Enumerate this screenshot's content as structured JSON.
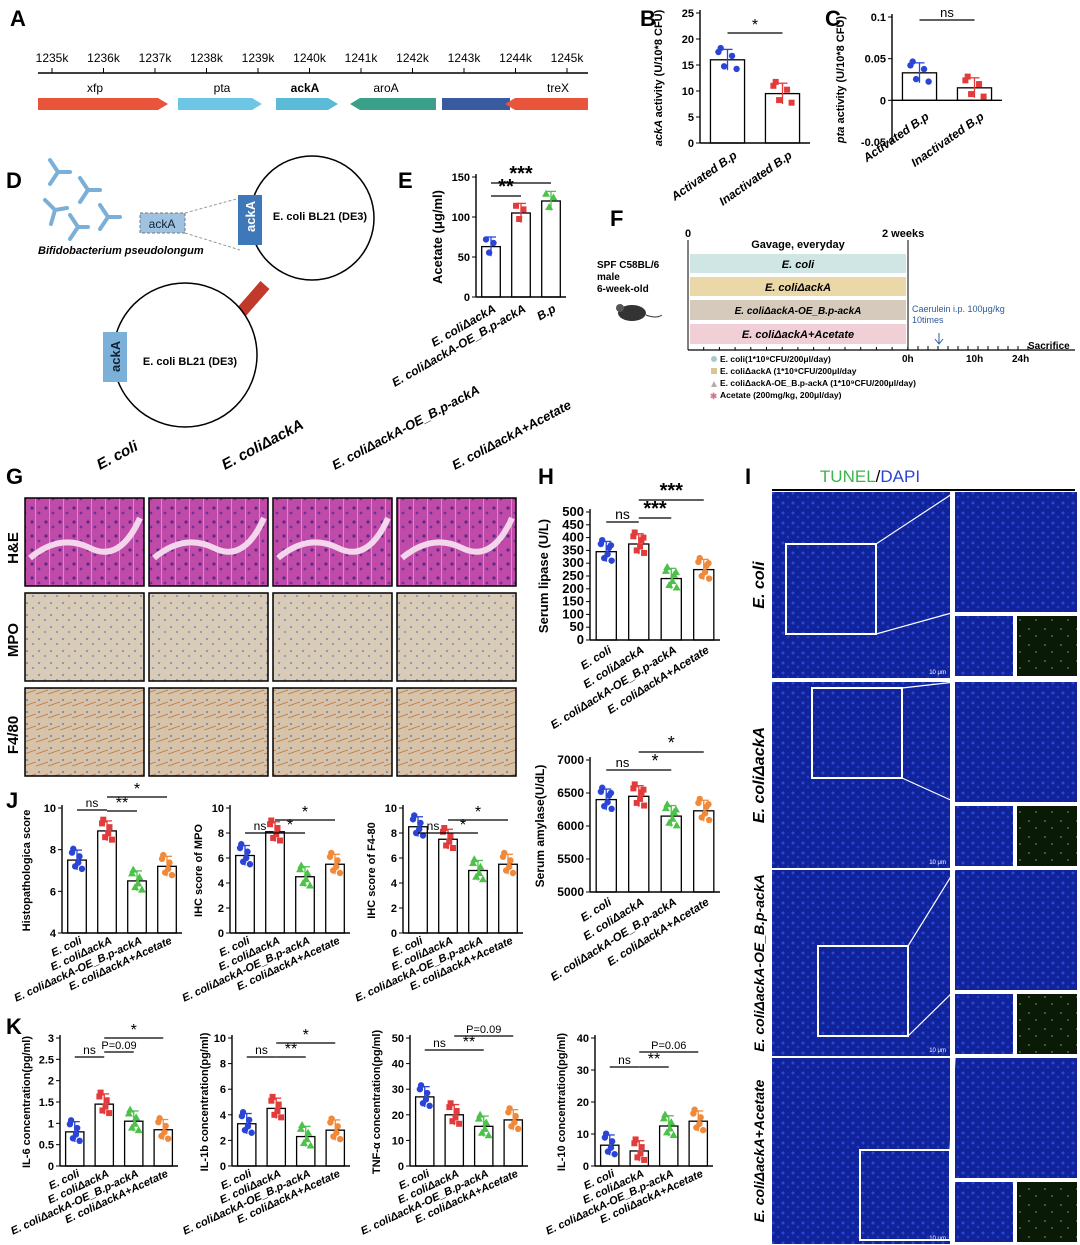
{
  "colors": {
    "blue": "#2a44d6",
    "red": "#e23b3b",
    "green": "#4cc24a",
    "orange": "#f08a3a",
    "xfp": "#e8553a",
    "pta": "#6ec6e6",
    "ackA": "#5bbad6",
    "aroA": "#3aa089",
    "nav": "#3a5aa0",
    "treX": "#e8553a"
  },
  "panelA": {
    "letter": "A",
    "ticks": [
      "1235k",
      "1236k",
      "1237k",
      "1238k",
      "1239k",
      "1240k",
      "1241k",
      "1242k",
      "1243k",
      "1244k",
      "1245k"
    ],
    "genes": [
      "xfp",
      "pta",
      "ackA",
      "aroA",
      "treX"
    ]
  },
  "panelB": {
    "letter": "B",
    "ylabel": "ackA activity (U/10*8 CFU)",
    "sig": "*",
    "cats": [
      "Activated B.p",
      "Inactivated B.p"
    ]
  },
  "panelC": {
    "letter": "C",
    "ylabel": "pta activity (U/10*8 CFU)",
    "sig": "ns",
    "cats": [
      "Activated B.p",
      "Inactivated B.p"
    ]
  },
  "panelD": {
    "letter": "D",
    "bacterium": "Bifidobacterium pseudolongum",
    "gene": "ackA",
    "host": "E. coli BL21 (DE3)"
  },
  "panelE": {
    "letter": "E",
    "ylabel": "Acetate (μg/ml)",
    "sig1": "**",
    "sig2": "***",
    "cats": [
      "E. coliΔackA",
      "E. coliΔackA-OE_B.p-ackA",
      "B.p"
    ]
  },
  "panelF": {
    "letter": "F",
    "mouse": "SPF C58BL/6 male 6-week-old",
    "gavage": "Gavage, everyday",
    "t0": "0",
    "t2w": "2 weeks",
    "th0": "0h",
    "th10": "10h",
    "th24": "24h",
    "sac": "Sacrifice",
    "cae": "Caerulein i.p. 100μg/kg 10times",
    "groups": [
      "E. coli",
      "E. coliΔackA",
      "E. coliΔackA-OE_B.p-ackA",
      "E. coliΔackA+Acetate"
    ],
    "legend": [
      "E. coli(1*10⁹CFU/200μl/day)",
      "E. coliΔackA (1*10⁹CFU/200μl/day",
      "E. coliΔackA-OE_B.p-ackA (1*10⁹CFU/200μl/day)",
      "Acetate (200mg/kg, 200μl/day)"
    ]
  },
  "panelG": {
    "letter": "G",
    "cols": [
      "E. coli",
      "E. coliΔackA",
      "E. coliΔackA-OE_B.p-ackA",
      "E. coliΔackA+Acetate"
    ],
    "rows": [
      "H&E",
      "MPO",
      "F4/80"
    ]
  },
  "panelH": {
    "letter": "H",
    "ylabel1": "Serum lipase (U/L)",
    "ylabel2": "Serum amylase(U/dL)",
    "sig": [
      "ns",
      "***",
      "***",
      "ns",
      "*",
      "*"
    ]
  },
  "panelI": {
    "letter": "I",
    "title_a": "TUNEL",
    "title_sep": "/",
    "title_b": "DAPI",
    "rows": [
      "E. coli",
      "E. coliΔackA",
      "E. coliΔackA-OE_B.p-ackA",
      "E. coliΔackA+Acetate"
    ],
    "scale": "10 μm"
  },
  "panelJ": {
    "letter": "J",
    "ylabels": [
      "Histopathologica score",
      "IHC score of MPO",
      "IHC score of F4-80"
    ],
    "sig": [
      "ns",
      "**",
      "*",
      "ns",
      "*",
      "*",
      "ns",
      "*",
      "*"
    ]
  },
  "panelK": {
    "letter": "K",
    "ylabels": [
      "IL-6 concentration(pg/ml)",
      "IL-1b concentration(pg/ml)",
      "TNF-α concentration(pg/ml)",
      "IL-10 concentration(pg/ml)"
    ],
    "sig": [
      "ns",
      "P=0.09",
      "*",
      "ns",
      "**",
      "*",
      "ns",
      "**",
      "P=0.09",
      "ns",
      "**",
      "P=0.06"
    ]
  },
  "group_labels": [
    "E. coli",
    "E. coliΔackA",
    "E. coliΔackA-OE_B.p-ackA",
    "E. coliΔackA+Acetate"
  ],
  "chart_data": [
    {
      "type": "bar",
      "id": "B",
      "categories": [
        "Activated B.p",
        "Inactivated B.p"
      ],
      "values": [
        16,
        9.5
      ],
      "ylim": [
        0,
        25
      ],
      "yticks": [
        0,
        5,
        10,
        15,
        20,
        25
      ],
      "ylabel": "ackA activity (U/10*8 CFU)"
    },
    {
      "type": "bar",
      "id": "C",
      "categories": [
        "Activated B.p",
        "Inactivated B.p"
      ],
      "values": [
        0.033,
        0.015
      ],
      "ylim": [
        -0.05,
        0.1
      ],
      "yticks": [
        -0.05,
        0,
        0.05,
        0.1
      ],
      "ylabel": "pta activity (U/10*8 CFU)"
    },
    {
      "type": "bar",
      "id": "E",
      "categories": [
        "E. coliΔackA",
        "E. coliΔackA-OE_B.p-ackA",
        "B.p"
      ],
      "values": [
        63,
        105,
        120
      ],
      "ylim": [
        0,
        150
      ],
      "yticks": [
        0,
        50,
        100,
        150
      ],
      "ylabel": "Acetate (μg/ml)"
    },
    {
      "type": "bar",
      "id": "H1",
      "categories": [
        "E. coli",
        "E. coliΔackA",
        "E. coliΔackA-OE_B.p-ackA",
        "E. coliΔackA+Acetate"
      ],
      "values": [
        345,
        375,
        240,
        275
      ],
      "ylim": [
        0,
        500
      ],
      "yticks": [
        0,
        50,
        100,
        150,
        200,
        250,
        300,
        350,
        400,
        450,
        500
      ],
      "ylabel": "Serum lipase (U/L)"
    },
    {
      "type": "bar",
      "id": "H2",
      "categories": [
        "E. coli",
        "E. coliΔackA",
        "E. coliΔackA-OE_B.p-ackA",
        "E. coliΔackA+Acetate"
      ],
      "values": [
        6400,
        6450,
        6150,
        6230
      ],
      "ylim": [
        5000,
        7000
      ],
      "yticks": [
        5000,
        5500,
        6000,
        6500,
        7000
      ],
      "ylabel": "Serum amylase(U/dL)"
    },
    {
      "type": "bar",
      "id": "J1",
      "categories": [
        "E. coli",
        "E. coliΔackA",
        "E. coliΔackA-OE_B.p-ackA",
        "E. coliΔackA+Acetate"
      ],
      "values": [
        7.5,
        8.9,
        6.5,
        7.2
      ],
      "ylim": [
        4,
        10
      ],
      "yticks": [
        4,
        6,
        8,
        10
      ],
      "ylabel": "Histopathologica score"
    },
    {
      "type": "bar",
      "id": "J2",
      "categories": [
        "E. coli",
        "E. coliΔackA",
        "E. coliΔackA-OE_B.p-ackA",
        "E. coliΔackA+Acetate"
      ],
      "values": [
        6.2,
        8.1,
        4.5,
        5.5
      ],
      "ylim": [
        0,
        10
      ],
      "yticks": [
        0,
        2,
        4,
        6,
        8,
        10
      ],
      "ylabel": "IHC score of MPO"
    },
    {
      "type": "bar",
      "id": "J3",
      "categories": [
        "E. coli",
        "E. coliΔackA",
        "E. coliΔackA-OE_B.p-ackA",
        "E. coliΔackA+Acetate"
      ],
      "values": [
        8.5,
        7.5,
        5,
        5.5
      ],
      "ylim": [
        0,
        10
      ],
      "yticks": [
        0,
        2,
        4,
        6,
        8,
        10
      ],
      "ylabel": "IHC score of F4-80"
    },
    {
      "type": "bar",
      "id": "K1",
      "categories": [
        "E. coli",
        "E. coliΔackA",
        "E. coliΔackA-OE_B.p-ackA",
        "E. coliΔackA+Acetate"
      ],
      "values": [
        0.8,
        1.45,
        1.05,
        0.85
      ],
      "ylim": [
        0,
        3
      ],
      "yticks": [
        0,
        0.5,
        1,
        1.5,
        2,
        2.5,
        3
      ],
      "ylabel": "IL-6 concentration(pg/ml)"
    },
    {
      "type": "bar",
      "id": "K2",
      "categories": [
        "E. coli",
        "E. coliΔackA",
        "E. coliΔackA-OE_B.p-ackA",
        "E. coliΔackA+Acetate"
      ],
      "values": [
        3.3,
        4.5,
        2.3,
        2.8
      ],
      "ylim": [
        0,
        10
      ],
      "yticks": [
        0,
        2,
        4,
        6,
        8,
        10
      ],
      "ylabel": "IL-1b concentration(pg/ml)"
    },
    {
      "type": "bar",
      "id": "K3",
      "categories": [
        "E. coli",
        "E. coliΔackA",
        "E. coliΔackA-OE_B.p-ackA",
        "E. coliΔackA+Acetate"
      ],
      "values": [
        27,
        20,
        15.5,
        18
      ],
      "ylim": [
        0,
        50
      ],
      "yticks": [
        0,
        10,
        20,
        30,
        40,
        50
      ],
      "ylabel": "TNF-α concentration(pg/ml)"
    },
    {
      "type": "bar",
      "id": "K4",
      "categories": [
        "E. coli",
        "E. coliΔackA",
        "E. coliΔackA-OE_B.p-ackA",
        "E. coliΔackA+Acetate"
      ],
      "values": [
        6.5,
        4.7,
        12.5,
        14
      ],
      "ylim": [
        0,
        40
      ],
      "yticks": [
        0,
        10,
        20,
        30,
        40
      ],
      "ylabel": "IL-10 concentration(pg/ml)"
    }
  ]
}
